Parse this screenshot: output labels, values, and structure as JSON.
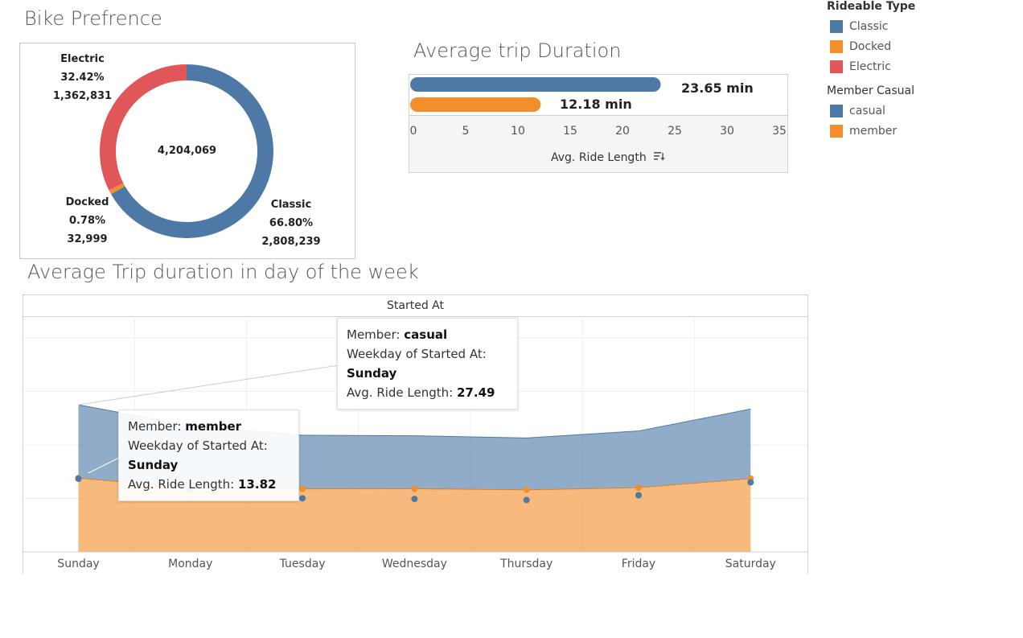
{
  "titles": {
    "bike_preference": "Bike Prefrence",
    "avg_trip_duration": "Average trip Duration",
    "avg_trip_weekday": "Average Trip duration in day of the week"
  },
  "legend": {
    "rideable_title": "Rideable Type",
    "rideable": [
      {
        "label": "Classic",
        "color": "#4e79a7"
      },
      {
        "label": "Docked",
        "color": "#f28e2b"
      },
      {
        "label": "Electric",
        "color": "#e15759"
      }
    ],
    "member_title": "Member Casual",
    "member": [
      {
        "label": "casual",
        "color": "#4e79a7"
      },
      {
        "label": "member",
        "color": "#f28e2b"
      }
    ]
  },
  "donut": {
    "total": "4,204,069",
    "classic": {
      "name": "Classic",
      "pct": "66.80%",
      "count": "2,808,239"
    },
    "docked": {
      "name": "Docked",
      "pct": "0.78%",
      "count": "32,999"
    },
    "electric": {
      "name": "Electric",
      "pct": "32.42%",
      "count": "1,362,831"
    }
  },
  "bar": {
    "casual_label": "23.65 min",
    "member_label": "12.18 min",
    "axis_title": "Avg. Ride Length",
    "sort_icon": "sort-descending-icon"
  },
  "area": {
    "header": "Started At",
    "tooltip_casual": {
      "member_key": "Member:",
      "member_val": "casual",
      "weekday_key": "Weekday of Started At:",
      "weekday_val": "Sunday",
      "avg_key": "Avg. Ride Length:",
      "avg_val": "27.49"
    },
    "tooltip_member": {
      "member_key": "Member:",
      "member_val": "member",
      "weekday_key": "Weekday of Started At:",
      "weekday_val": "Sunday",
      "avg_key": "Avg. Ride Length:",
      "avg_val": "13.82"
    }
  },
  "chart_data": [
    {
      "type": "pie",
      "title": "Bike Prefrence",
      "categories": [
        "Classic",
        "Docked",
        "Electric"
      ],
      "values": [
        2808239,
        32999,
        1362831
      ],
      "percentages": [
        66.8,
        0.78,
        32.42
      ],
      "total": 4204069,
      "colors": [
        "#4e79a7",
        "#f28e2b",
        "#e15759"
      ],
      "donut": true
    },
    {
      "type": "bar",
      "orientation": "horizontal",
      "title": "Average trip Duration",
      "categories": [
        "casual",
        "member"
      ],
      "values": [
        23.65,
        12.18
      ],
      "colors": [
        "#4e79a7",
        "#f28e2b"
      ],
      "xlabel": "Avg. Ride Length",
      "xlim": [
        0,
        35
      ],
      "xticks": [
        0,
        5,
        10,
        15,
        20,
        25,
        30,
        35
      ]
    },
    {
      "type": "area",
      "title": "Average Trip duration in day of the week",
      "header": "Started At",
      "categories": [
        "Sunday",
        "Monday",
        "Tuesday",
        "Wednesday",
        "Thursday",
        "Friday",
        "Saturday"
      ],
      "stacked": true,
      "ylim": [
        0,
        43
      ],
      "series": [
        {
          "name": "member",
          "color": "#f28e2b",
          "values": [
            13.82,
            11.9,
            11.78,
            11.8,
            11.6,
            12.0,
            13.7
          ]
        },
        {
          "name": "casual",
          "color": "#4e79a7",
          "values": [
            27.49,
            23.6,
            21.8,
            21.7,
            21.3,
            22.6,
            26.7
          ]
        }
      ]
    }
  ]
}
